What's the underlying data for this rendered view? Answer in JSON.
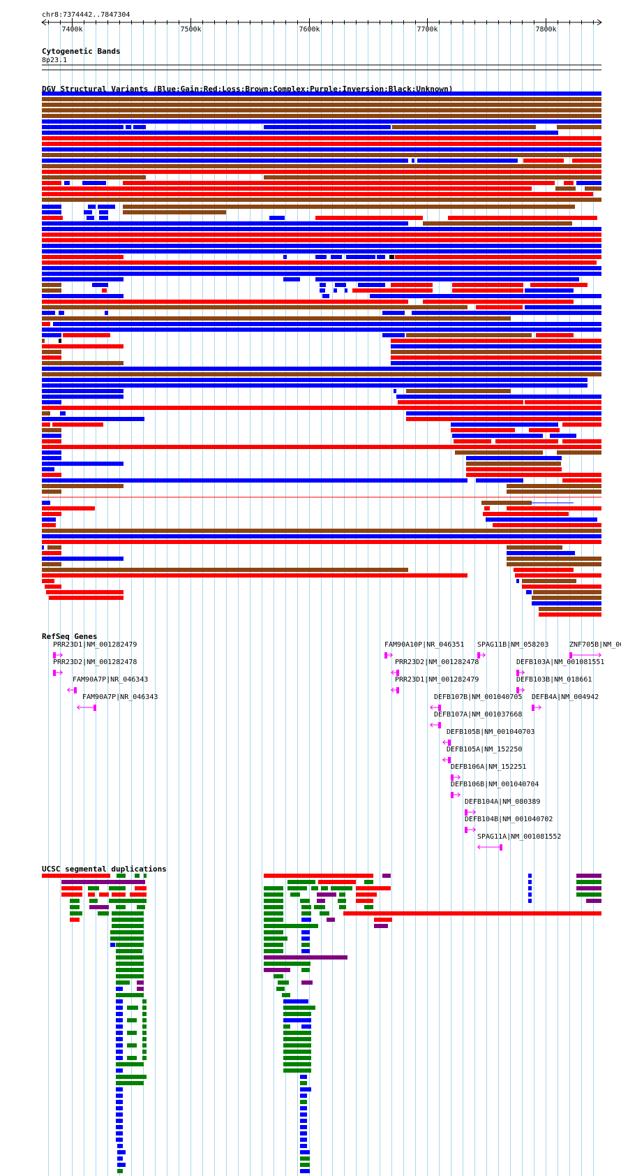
{
  "position": "chr8:7374442..7847304",
  "ruler": {
    "ticks": [
      {
        "pos": 7400000,
        "label": "7400k"
      },
      {
        "pos": 7500000,
        "label": "7500k"
      },
      {
        "pos": 7600000,
        "label": "7600k"
      },
      {
        "pos": 7700000,
        "label": "7700k"
      },
      {
        "pos": 7800000,
        "label": "7800k"
      }
    ]
  },
  "tracks": {
    "cyto": {
      "title": "Cytogenetic Bands",
      "band": "8p23.1"
    },
    "dgv": {
      "title": "DGV Structural Variants (Blue:Gain;Red:Loss;Brown:Complex;Purple:Inversion;Black:Unknown)"
    },
    "refseq": {
      "title": "RefSeq Genes",
      "genes": [
        {
          "label": "PRR23D1|NM_001282479",
          "strand": "+"
        },
        {
          "label": "PRR23D2|NM_001282478",
          "strand": "+"
        },
        {
          "label": "FAM90A7P|NR_046343",
          "strand": "-"
        },
        {
          "label": "FAM90A7P|NR_046343",
          "strand": "-"
        },
        {
          "label": "FAM90A10P|NR_046351",
          "strand": "+"
        },
        {
          "label": "SPAG11B|NM_058203",
          "strand": "+"
        },
        {
          "label": "ZNF705B|NM_00",
          "strand": "+"
        },
        {
          "label": "PRR23D2|NM_001282478",
          "strand": "-"
        },
        {
          "label": "DEFB103A|NM_001081551",
          "strand": "+"
        },
        {
          "label": "PRR23D1|NM_001282479",
          "strand": "-"
        },
        {
          "label": "DEFB103B|NM_018661",
          "strand": "+"
        },
        {
          "label": "DEFB107B|NM_001040705",
          "strand": "-"
        },
        {
          "label": "DEFB4A|NM_004942",
          "strand": "+"
        },
        {
          "label": "DEFB107A|NM_001037668",
          "strand": "-"
        },
        {
          "label": "DEFB105B|NM_001040703",
          "strand": "-"
        },
        {
          "label": "DEFB105A|NM_152250",
          "strand": "-"
        },
        {
          "label": "DEFB106A|NM_152251",
          "strand": "+"
        },
        {
          "label": "DEFB106B|NM_001040704",
          "strand": "+"
        },
        {
          "label": "DEFB104A|NM_080389",
          "strand": "+"
        },
        {
          "label": "DEFB104B|NM_001040702",
          "strand": "+"
        },
        {
          "label": "SPAG11A|NM_001081552",
          "strand": "-"
        }
      ]
    },
    "segdups": {
      "title": "UCSC segmental duplications"
    }
  },
  "colors": {
    "gain": "#0000ff",
    "loss": "#ff0000",
    "complex": "#8b4513",
    "inversion": "#800080",
    "unknown": "#000000",
    "gene": "#ff00ff",
    "grid": "#a8d8f0",
    "segdup_green": "#008000",
    "segdup_blue": "#0000ff",
    "segdup_red": "#ff0000",
    "segdup_purple": "#800080"
  }
}
